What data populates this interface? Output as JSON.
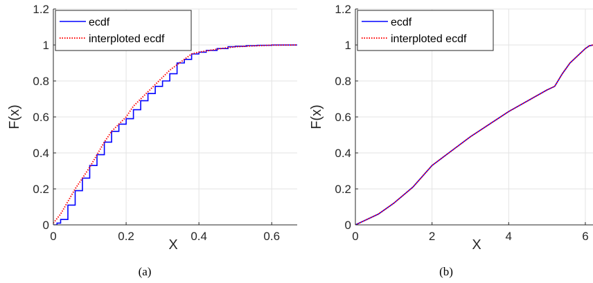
{
  "chart_data": [
    {
      "type": "line",
      "caption": "(a)",
      "xlabel": "X",
      "ylabel": "F(x)",
      "xlim": [
        0,
        0.67
      ],
      "ylim": [
        0,
        1.2
      ],
      "xticks": [
        "0",
        "0.2",
        "0.4",
        "0.6"
      ],
      "yticks": [
        "0",
        "0.2",
        "0.4",
        "0.6",
        "0.8",
        "1",
        "1.2"
      ],
      "grid": true,
      "legend_position": "top-left",
      "series": [
        {
          "name": "ecdf",
          "style": "stairs",
          "color": "#0000ff",
          "x": [
            0,
            0.01,
            0.02,
            0.04,
            0.06,
            0.08,
            0.1,
            0.12,
            0.14,
            0.16,
            0.18,
            0.2,
            0.22,
            0.24,
            0.26,
            0.28,
            0.3,
            0.32,
            0.34,
            0.36,
            0.38,
            0.4,
            0.42,
            0.45,
            0.48,
            0.5,
            0.53,
            0.56,
            0.6,
            0.67
          ],
          "y": [
            0.0,
            0.01,
            0.03,
            0.11,
            0.19,
            0.26,
            0.33,
            0.39,
            0.46,
            0.52,
            0.56,
            0.59,
            0.64,
            0.69,
            0.73,
            0.77,
            0.8,
            0.84,
            0.9,
            0.92,
            0.95,
            0.96,
            0.97,
            0.98,
            0.99,
            0.993,
            0.996,
            0.998,
            1.0,
            1.0
          ]
        },
        {
          "name": "interploted ecdf",
          "style": "dotted",
          "color": "#ff0000",
          "x": [
            0,
            0.02,
            0.04,
            0.06,
            0.08,
            0.1,
            0.12,
            0.14,
            0.16,
            0.18,
            0.2,
            0.22,
            0.24,
            0.26,
            0.28,
            0.3,
            0.32,
            0.34,
            0.36,
            0.38,
            0.4,
            0.43,
            0.46,
            0.5,
            0.55,
            0.6,
            0.67
          ],
          "y": [
            0.01,
            0.06,
            0.13,
            0.2,
            0.26,
            0.32,
            0.39,
            0.46,
            0.52,
            0.56,
            0.6,
            0.66,
            0.7,
            0.74,
            0.78,
            0.82,
            0.86,
            0.89,
            0.92,
            0.95,
            0.96,
            0.97,
            0.98,
            0.99,
            0.995,
            0.999,
            1.0
          ]
        }
      ]
    },
    {
      "type": "line",
      "caption": "(b)",
      "xlabel": "X",
      "ylabel": "F(x)",
      "xlim": [
        0,
        6.2
      ],
      "ylim": [
        0,
        1.2
      ],
      "xticks": [
        "0",
        "2",
        "4",
        "6"
      ],
      "yticks": [
        "0",
        "0.2",
        "0.4",
        "0.6",
        "0.8",
        "1",
        "1.2"
      ],
      "grid": true,
      "legend_position": "top-left",
      "series": [
        {
          "name": "ecdf",
          "style": "solid",
          "color": "#0000ff",
          "x": [
            0,
            0.1,
            0.3,
            0.6,
            1.0,
            1.5,
            2.0,
            2.5,
            3.0,
            3.5,
            4.0,
            4.5,
            5.0,
            5.2,
            5.4,
            5.6,
            5.8,
            6.0,
            6.1,
            6.2
          ],
          "y": [
            0.0,
            0.01,
            0.03,
            0.06,
            0.12,
            0.21,
            0.33,
            0.41,
            0.49,
            0.56,
            0.63,
            0.69,
            0.75,
            0.77,
            0.84,
            0.9,
            0.94,
            0.98,
            0.995,
            1.0
          ]
        },
        {
          "name": "interploted ecdf",
          "style": "dotted",
          "color": "#ff0000",
          "x": [
            0,
            0.1,
            0.3,
            0.6,
            1.0,
            1.5,
            2.0,
            2.5,
            3.0,
            3.5,
            4.0,
            4.5,
            5.0,
            5.2,
            5.4,
            5.6,
            5.8,
            6.0,
            6.1,
            6.2
          ],
          "y": [
            0.0,
            0.01,
            0.03,
            0.06,
            0.12,
            0.21,
            0.33,
            0.41,
            0.49,
            0.56,
            0.63,
            0.69,
            0.75,
            0.77,
            0.84,
            0.9,
            0.94,
            0.98,
            0.995,
            1.0
          ]
        }
      ]
    }
  ]
}
